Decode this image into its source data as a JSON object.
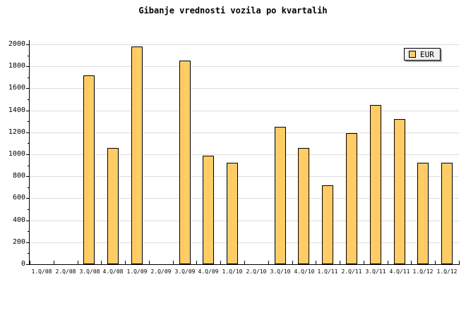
{
  "chart_data": {
    "type": "bar",
    "title": "Gibanje vrednosti vozila po kvartalih",
    "categories": [
      "1.Q/08",
      "2.Q/08",
      "3.Q/08",
      "4.Q/08",
      "1.Q/09",
      "2.Q/09",
      "3.Q/09",
      "4.Q/09",
      "1.Q/10",
      "2.Q/10",
      "3.Q/10",
      "4.Q/10",
      "1.Q/11",
      "2.Q/11",
      "3.Q/11",
      "4.Q/11",
      "1.Q/12",
      "1.Q/12"
    ],
    "series": [
      {
        "name": "EUR",
        "values": [
          null,
          null,
          1720,
          1060,
          1980,
          null,
          1850,
          990,
          920,
          null,
          1250,
          1060,
          720,
          1190,
          1450,
          1320,
          920,
          920
        ]
      }
    ],
    "xlabel": "",
    "ylabel": "",
    "ylim": [
      0,
      2000
    ],
    "y_major_step": 200,
    "y_minor_step": 100,
    "y_tick_labels": [
      "0",
      "200",
      "400",
      "600",
      "800",
      "1000",
      "1200",
      "1400",
      "1600",
      "1800",
      "2000"
    ],
    "grid": "horizontal-major",
    "legend": {
      "position": "top-right",
      "entries": [
        {
          "label": "EUR",
          "color": "#ffcc66"
        }
      ]
    },
    "colors": {
      "bar_fill": "#ffcc66",
      "bar_border": "#000000",
      "grid_line": "#dcdcdc",
      "axis_line": "#000000",
      "background": "#ffffff",
      "legend_bg": "#f0f0f0",
      "legend_shadow": "#a6a6a6",
      "text": "#000000"
    }
  }
}
